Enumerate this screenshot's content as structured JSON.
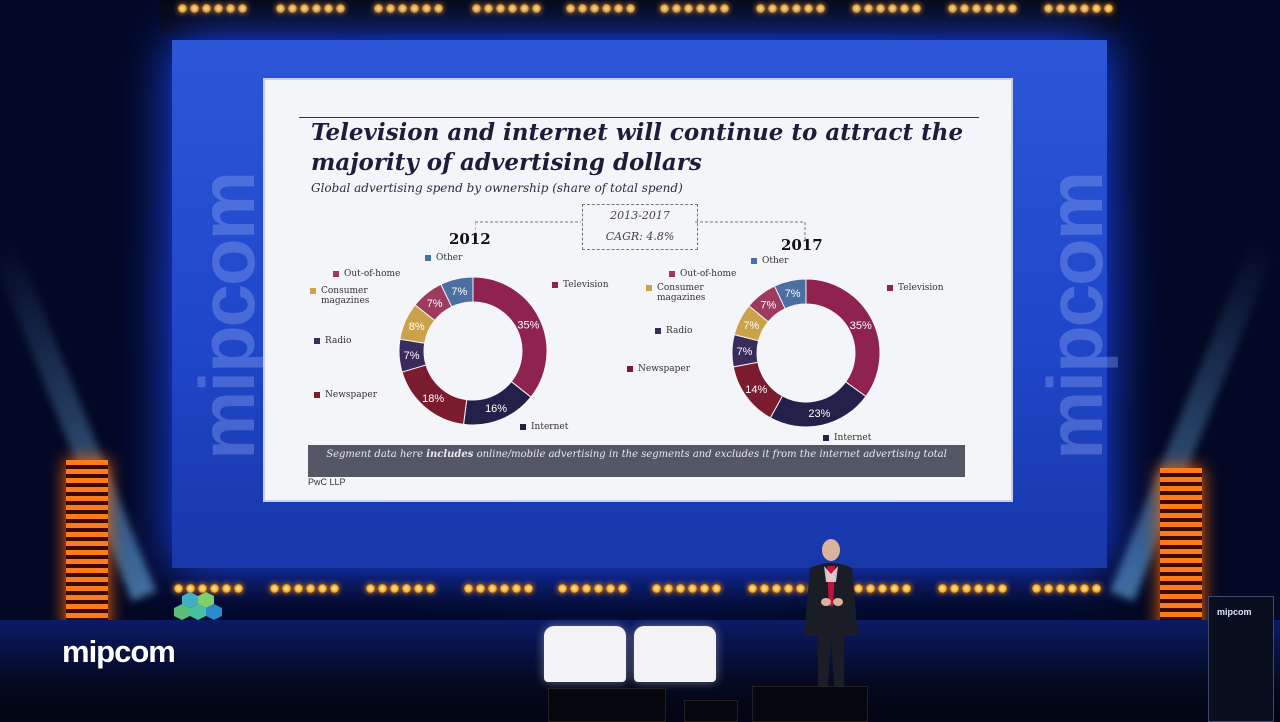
{
  "slide": {
    "title": "Television and internet will continue to attract the majority of advertising dollars",
    "subtitle": "Global advertising spend by ownership (share of total spend)",
    "cagr_period": "2013-2017",
    "cagr_value": "CAGR: 4.8%",
    "note_prefix": "Segment data here ",
    "note_bold": "includes",
    "note_suffix": " online/mobile advertising in the segments and excludes it from the internet advertising total",
    "source": "PwC LLP"
  },
  "chart_data": [
    {
      "type": "pie",
      "title": "2012",
      "categories": [
        "Television",
        "Internet",
        "Newspaper",
        "Radio",
        "Consumer magazines",
        "Out-of-home",
        "Other"
      ],
      "values": [
        35,
        16,
        18,
        7,
        8,
        7,
        7
      ],
      "value_labels": [
        "35%",
        "16%",
        "18%",
        "7%",
        "8%",
        "7%",
        "7%"
      ]
    },
    {
      "type": "pie",
      "title": "2017",
      "categories": [
        "Television",
        "Internet",
        "Newspaper",
        "Radio",
        "Consumer magazines",
        "Out-of-home",
        "Other"
      ],
      "values": [
        35,
        23,
        14,
        7,
        7,
        7,
        7
      ],
      "value_labels": [
        "35%",
        "23%",
        "14%",
        "7%",
        "7%",
        "7%",
        "7%"
      ]
    }
  ],
  "colors": {
    "Television": "#8e2350",
    "Internet": "#23214a",
    "Newspaper": "#7a1c2e",
    "Radio": "#3b2a5c",
    "Consumer magazines": "#c9a24a",
    "Out-of-home": "#9c3b5e",
    "Other": "#4a6fa0"
  },
  "legend_labels": {
    "television": "Television",
    "internet": "Internet",
    "newspaper": "Newspaper",
    "radio": "Radio",
    "magazines_line1": "Consumer",
    "magazines_line2": "magazines",
    "outofhome": "Out-of-home",
    "other": "Other"
  },
  "watermark": "mipcom",
  "event_logo": "mipcom",
  "podium_label": "mipcom"
}
